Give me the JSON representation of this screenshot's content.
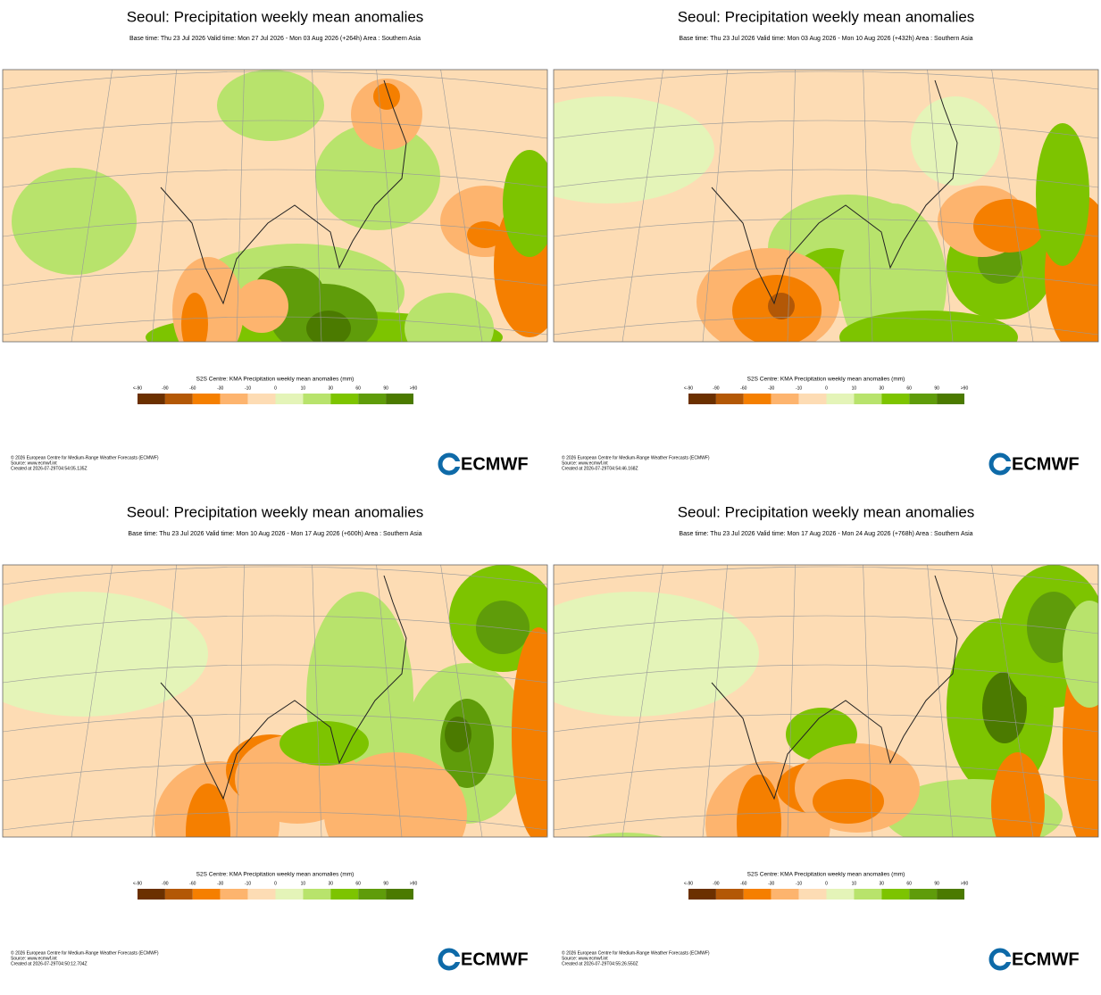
{
  "panels": [
    {
      "title": "Seoul: Precipitation weekly mean anomalies",
      "subtitle": "Base time: Thu 23 Jul 2026 Valid time: Mon 27 Jul 2026 - Mon 03 Aug 2026 (+264h) Area : Southern Asia",
      "legend_title": "S2S Centre: KMA Precipitation weekly mean anomalies (mm)",
      "footer": [
        "© 2026 European Centre for Medium-Range Weather Forecasts (ECMWF)",
        "Source: www.ecmwf.int",
        "Created at 2026-07-29T04:54:05.135Z"
      ],
      "logo": "ECMWF"
    },
    {
      "title": "Seoul: Precipitation weekly mean anomalies",
      "subtitle": "Base time: Thu 23 Jul 2026 Valid time: Mon 03 Aug 2026 - Mon 10 Aug 2026 (+432h) Area : Southern Asia",
      "legend_title": "S2S Centre: KMA Precipitation weekly mean anomalies (mm)",
      "footer": [
        "© 2026 European Centre for Medium-Range Weather Forecasts (ECMWF)",
        "Source: www.ecmwf.int",
        "Created at 2026-07-29T04:54:46.168Z"
      ],
      "logo": "ECMWF"
    },
    {
      "title": "Seoul: Precipitation weekly mean anomalies",
      "subtitle": "Base time: Thu 23 Jul 2026 Valid time: Mon 10 Aug 2026 - Mon 17 Aug 2026 (+600h) Area : Southern Asia",
      "legend_title": "S2S Centre: KMA Precipitation weekly mean anomalies (mm)",
      "footer": [
        "© 2026 European Centre for Medium-Range Weather Forecasts (ECMWF)",
        "Source: www.ecmwf.int",
        "Created at 2026-07-29T04:50:12.704Z"
      ],
      "logo": "ECMWF"
    },
    {
      "title": "Seoul: Precipitation weekly mean anomalies",
      "subtitle": "Base time: Thu 23 Jul 2026 Valid time: Mon 17 Aug 2026 - Mon 24 Aug 2026 (+768h) Area : Southern Asia",
      "legend_title": "S2S Centre: KMA Precipitation weekly mean anomalies (mm)",
      "footer": [
        "© 2026 European Centre for Medium-Range Weather Forecasts (ECMWF)",
        "Source: www.ecmwf.int",
        "Created at 2026-07-29T04:55:26.550Z"
      ],
      "logo": "ECMWF"
    }
  ],
  "colorbar": {
    "labels": [
      "<-90",
      "-90",
      "-60",
      "-30",
      "-10",
      "0",
      "10",
      "30",
      "60",
      "90",
      ">90"
    ],
    "colors": [
      "#6b3000",
      "#b35806",
      "#f57f00",
      "#fdb46e",
      "#fddcb4",
      "#e4f4b8",
      "#b8e36c",
      "#7dc400",
      "#5f9c0a",
      "#4b7a00"
    ]
  }
}
